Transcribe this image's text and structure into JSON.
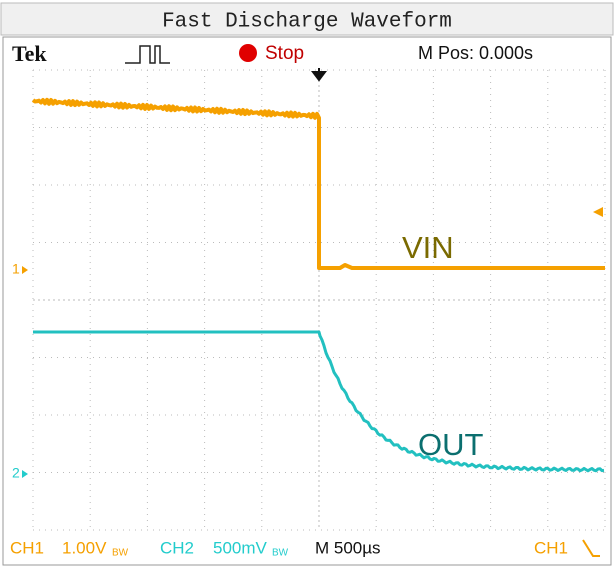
{
  "title": "Fast Discharge Waveform",
  "header": {
    "brand": "Tek",
    "status": "Stop",
    "position": "M Pos: 0.000s"
  },
  "traces": {
    "ch1_label": "VIN",
    "ch2_label": "OUT",
    "ch1_marker": "1",
    "ch2_marker": "2"
  },
  "footer": {
    "ch1": "CH1",
    "ch1_scale": "1.00V",
    "ch1_bw": "BW",
    "ch2": "CH2",
    "ch2_scale": "500mV",
    "ch2_bw": "BW",
    "timebase": "M 500µs",
    "trigger_source": "CH1"
  }
}
